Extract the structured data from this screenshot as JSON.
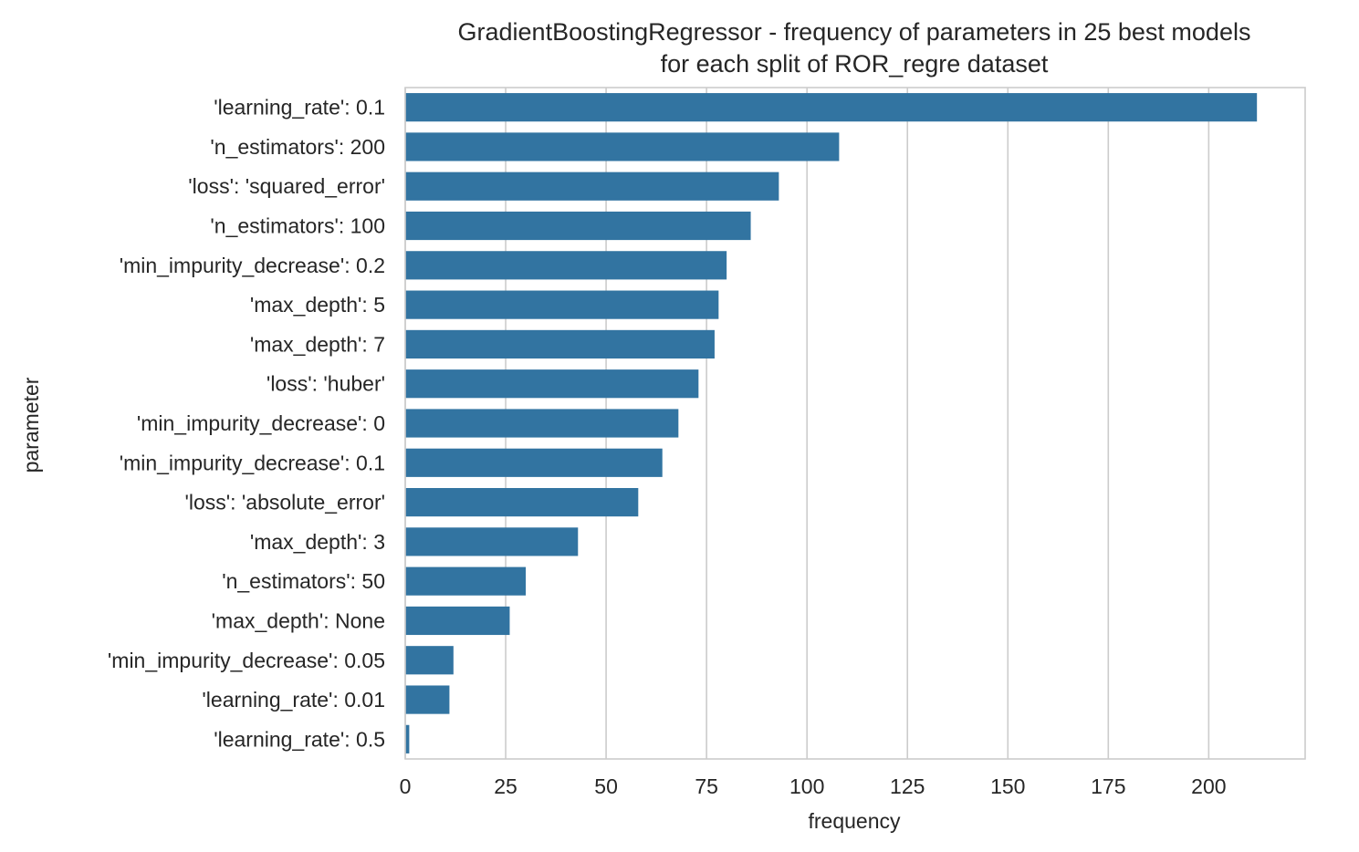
{
  "chart_data": {
    "type": "bar",
    "orientation": "horizontal",
    "title": "GradientBoostingRegressor - frequency of parameters in 25 best models",
    "subtitle": "for each split of ROR_regre dataset",
    "xlabel": "frequency",
    "ylabel": "parameter",
    "xlim": [
      0,
      224
    ],
    "xticks": [
      0,
      25,
      50,
      75,
      100,
      125,
      150,
      175,
      200
    ],
    "grid": "vertical",
    "bar_color": "#3274a1",
    "categories": [
      "'learning_rate': 0.1",
      "'n_estimators': 200",
      "'loss': 'squared_error'",
      "'n_estimators': 100",
      "'min_impurity_decrease': 0.2",
      "'max_depth': 5",
      "'max_depth': 7",
      "'loss': 'huber'",
      "'min_impurity_decrease': 0",
      "'min_impurity_decrease': 0.1",
      "'loss': 'absolute_error'",
      "'max_depth': 3",
      "'n_estimators': 50",
      "'max_depth': None",
      "'min_impurity_decrease': 0.05",
      "'learning_rate': 0.01",
      "'learning_rate': 0.5"
    ],
    "values": [
      212,
      108,
      93,
      86,
      80,
      78,
      77,
      73,
      68,
      64,
      58,
      43,
      30,
      26,
      12,
      11,
      1
    ]
  }
}
